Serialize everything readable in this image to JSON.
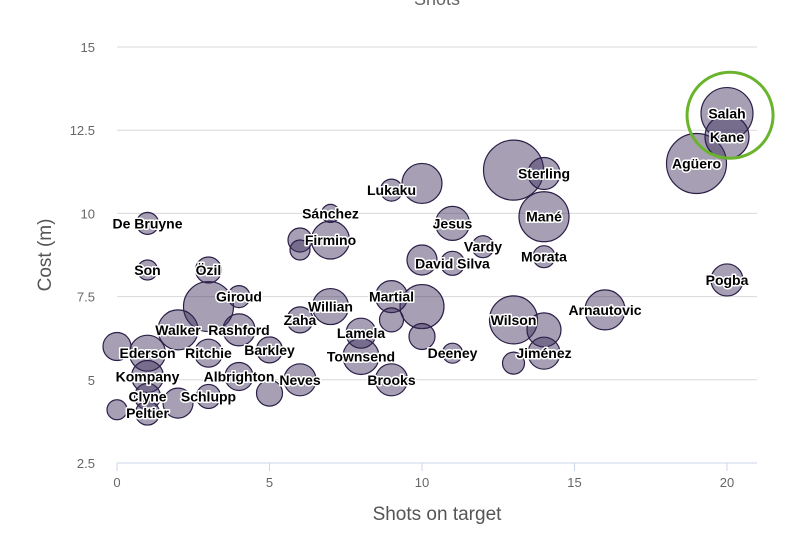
{
  "chart_data": {
    "type": "scatter",
    "title": "Shots",
    "xlabel": "Shots on target",
    "ylabel": "Cost (m)",
    "xlim": [
      0,
      21
    ],
    "ylim": [
      2.5,
      15
    ],
    "xticks": [
      0,
      5,
      10,
      15,
      20
    ],
    "yticks": [
      2.5,
      5,
      7.5,
      10,
      12.5,
      15
    ],
    "ytick_labels": [
      "2.5",
      "5",
      "7.5",
      "10",
      "12.5",
      "15"
    ],
    "grid": true,
    "highlight": {
      "label": "Salah",
      "x": 20.1,
      "y": 12.95,
      "color": "#6ab32d"
    },
    "points": [
      {
        "label": "Salah",
        "x": 20,
        "y": 13.0,
        "size": 26
      },
      {
        "label": "Kane",
        "x": 20,
        "y": 12.3,
        "size": 22
      },
      {
        "label": "Agüero",
        "x": 19,
        "y": 11.5,
        "size": 30
      },
      {
        "label": "Sterling",
        "x": 14,
        "y": 11.2,
        "size": 16
      },
      {
        "label": "",
        "x": 13,
        "y": 11.3,
        "size": 30
      },
      {
        "label": "Lukaku",
        "x": 9,
        "y": 10.7,
        "size": 11
      },
      {
        "label": "",
        "x": 10,
        "y": 10.9,
        "size": 20
      },
      {
        "label": "Jesus",
        "x": 11,
        "y": 9.7,
        "size": 17
      },
      {
        "label": "Mané",
        "x": 14,
        "y": 9.9,
        "size": 25
      },
      {
        "label": "Sánchez",
        "x": 7,
        "y": 10.0,
        "size": 9
      },
      {
        "label": "Firmino",
        "x": 7,
        "y": 9.2,
        "size": 19
      },
      {
        "label": "",
        "x": 6,
        "y": 9.2,
        "size": 12
      },
      {
        "label": "",
        "x": 6,
        "y": 8.9,
        "size": 10
      },
      {
        "label": "De Bruyne",
        "x": 1,
        "y": 9.7,
        "size": 11
      },
      {
        "label": "Vardy",
        "x": 12,
        "y": 9.0,
        "size": 11
      },
      {
        "label": "Morata",
        "x": 14,
        "y": 8.7,
        "size": 11
      },
      {
        "label": "David Silva",
        "x": 11,
        "y": 8.5,
        "size": 12
      },
      {
        "label": "",
        "x": 10,
        "y": 8.6,
        "size": 15
      },
      {
        "label": "Son",
        "x": 1,
        "y": 8.3,
        "size": 10
      },
      {
        "label": "Özil",
        "x": 3,
        "y": 8.3,
        "size": 13
      },
      {
        "label": "Pogba",
        "x": 20,
        "y": 8.0,
        "size": 16
      },
      {
        "label": "Giroud",
        "x": 4,
        "y": 7.5,
        "size": 11
      },
      {
        "label": "Martial",
        "x": 9,
        "y": 7.5,
        "size": 16
      },
      {
        "label": "Willian",
        "x": 7,
        "y": 7.2,
        "size": 18
      },
      {
        "label": "Arnautovic",
        "x": 16,
        "y": 7.1,
        "size": 20
      },
      {
        "label": "",
        "x": 10,
        "y": 7.2,
        "size": 22
      },
      {
        "label": "",
        "x": 3,
        "y": 7.2,
        "size": 25
      },
      {
        "label": "Wilson",
        "x": 13,
        "y": 6.8,
        "size": 24
      },
      {
        "label": "",
        "x": 14,
        "y": 6.5,
        "size": 17
      },
      {
        "label": "Zaha",
        "x": 6,
        "y": 6.8,
        "size": 13
      },
      {
        "label": "Rashford",
        "x": 4,
        "y": 6.5,
        "size": 16
      },
      {
        "label": "Walker",
        "x": 2,
        "y": 6.5,
        "size": 20
      },
      {
        "label": "Lamela",
        "x": 8,
        "y": 6.4,
        "size": 15
      },
      {
        "label": "",
        "x": 9,
        "y": 6.8,
        "size": 12
      },
      {
        "label": "",
        "x": 10,
        "y": 6.3,
        "size": 13
      },
      {
        "label": "Barkley",
        "x": 5,
        "y": 5.9,
        "size": 13
      },
      {
        "label": "Ederson",
        "x": 1,
        "y": 5.8,
        "size": 18
      },
      {
        "label": "Ritchie",
        "x": 3,
        "y": 5.8,
        "size": 14
      },
      {
        "label": "Townsend",
        "x": 8,
        "y": 5.7,
        "size": 18
      },
      {
        "label": "Deeney",
        "x": 11,
        "y": 5.8,
        "size": 10
      },
      {
        "label": "Jiménez",
        "x": 14,
        "y": 5.8,
        "size": 16
      },
      {
        "label": "",
        "x": 13,
        "y": 5.5,
        "size": 11
      },
      {
        "label": "Kompany",
        "x": 1,
        "y": 5.1,
        "size": 16
      },
      {
        "label": "Albrighton",
        "x": 4,
        "y": 5.1,
        "size": 14
      },
      {
        "label": "Neves",
        "x": 6,
        "y": 5.0,
        "size": 16
      },
      {
        "label": "Brooks",
        "x": 9,
        "y": 5.0,
        "size": 16
      },
      {
        "label": "Clyne",
        "x": 1,
        "y": 4.5,
        "size": 13
      },
      {
        "label": "Schlupp",
        "x": 3,
        "y": 4.5,
        "size": 12
      },
      {
        "label": "",
        "x": 2,
        "y": 4.3,
        "size": 15
      },
      {
        "label": "",
        "x": 5,
        "y": 4.6,
        "size": 13
      },
      {
        "label": "Peltier",
        "x": 1,
        "y": 4.0,
        "size": 12
      },
      {
        "label": "",
        "x": 0,
        "y": 4.1,
        "size": 10
      },
      {
        "label": "",
        "x": 0,
        "y": 6.0,
        "size": 14
      }
    ]
  }
}
